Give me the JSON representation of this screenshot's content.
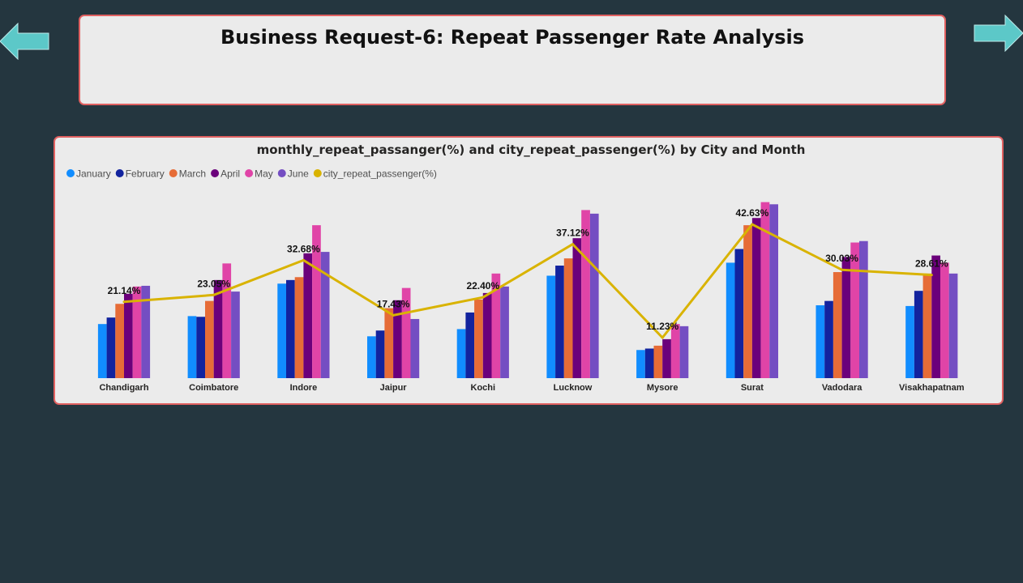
{
  "page": {
    "title": "Business Request-6: Repeat Passenger Rate Analysis"
  },
  "nav": {
    "arrow_color": "#5cc8c8"
  },
  "chart_data": {
    "type": "bar",
    "title": "monthly_repeat_passanger(%) and city_repeat_passenger(%) by City and Month",
    "legend_position": "top-left",
    "grid": false,
    "categories": [
      "Chandigarh",
      "Coimbatore",
      "Indore",
      "Jaipur",
      "Kochi",
      "Lucknow",
      "Mysore",
      "Surat",
      "Vadodara",
      "Visakhapatnam"
    ],
    "ylim": [
      0,
      55
    ],
    "series": [
      {
        "name": "January",
        "color": "#118dff",
        "values": [
          15.0,
          17.2,
          26.2,
          11.6,
          13.6,
          28.4,
          7.8,
          32.0,
          20.2,
          20.0
        ]
      },
      {
        "name": "February",
        "color": "#12239e",
        "values": [
          16.8,
          17.0,
          27.2,
          13.2,
          18.2,
          31.2,
          8.2,
          35.8,
          21.4,
          24.2
        ]
      },
      {
        "name": "March",
        "color": "#e66c37",
        "values": [
          20.6,
          21.4,
          28.0,
          19.4,
          21.8,
          33.2,
          9.0,
          42.4,
          29.4,
          29.0
        ]
      },
      {
        "name": "April",
        "color": "#6b007b",
        "values": [
          23.4,
          27.2,
          34.6,
          21.6,
          23.6,
          38.8,
          10.8,
          44.4,
          33.6,
          34.0
        ]
      },
      {
        "name": "May",
        "color": "#e044a7",
        "values": [
          25.4,
          31.8,
          42.4,
          25.0,
          29.0,
          46.6,
          15.0,
          48.8,
          37.6,
          32.0
        ]
      },
      {
        "name": "June",
        "color": "#744ec2",
        "values": [
          25.6,
          24.0,
          35.0,
          16.4,
          25.4,
          45.6,
          14.4,
          48.2,
          38.0,
          29.0
        ]
      }
    ],
    "line_series": {
      "name": "city_repeat_passenger(%)",
      "color": "#d9b300",
      "values": [
        21.14,
        23.05,
        32.68,
        17.43,
        22.4,
        37.12,
        11.23,
        42.63,
        30.03,
        28.61
      ],
      "labels": [
        "21.14%",
        "23.05%",
        "32.68%",
        "17.43%",
        "22.40%",
        "37.12%",
        "11.23%",
        "42.63%",
        "30.03%",
        "28.61%"
      ]
    }
  }
}
